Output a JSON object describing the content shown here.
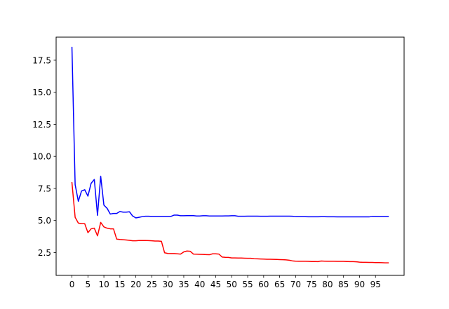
{
  "chart_data": {
    "type": "line",
    "title": "",
    "xlabel": "",
    "ylabel": "",
    "xlim": [
      -4.95,
      103.95
    ],
    "ylim": [
      0.72,
      19.3
    ],
    "grid": false,
    "legend": null,
    "x_ticks": [
      0,
      5,
      10,
      15,
      20,
      25,
      30,
      35,
      40,
      45,
      50,
      55,
      60,
      65,
      70,
      75,
      80,
      85,
      90,
      95
    ],
    "x_tick_labels": [
      "0",
      "5",
      "10",
      "15",
      "20",
      "25",
      "30",
      "35",
      "40",
      "45",
      "50",
      "55",
      "60",
      "65",
      "70",
      "75",
      "80",
      "85",
      "90",
      "95"
    ],
    "y_ticks": [
      2.5,
      5.0,
      7.5,
      10.0,
      12.5,
      15.0,
      17.5
    ],
    "y_tick_labels": [
      "2.5",
      "5.0",
      "7.5",
      "10.0",
      "12.5",
      "15.0",
      "17.5"
    ],
    "series": [
      {
        "color": "#0000ff",
        "values": [
          18.5,
          7.8,
          6.5,
          7.3,
          7.4,
          6.9,
          7.9,
          8.2,
          5.4,
          8.45,
          6.2,
          5.95,
          5.5,
          5.55,
          5.55,
          5.7,
          5.65,
          5.65,
          5.68,
          5.35,
          5.2,
          5.25,
          5.3,
          5.33,
          5.33,
          5.32,
          5.32,
          5.32,
          5.32,
          5.32,
          5.32,
          5.32,
          5.42,
          5.42,
          5.37,
          5.37,
          5.38,
          5.38,
          5.38,
          5.35,
          5.35,
          5.37,
          5.37,
          5.35,
          5.35,
          5.35,
          5.35,
          5.35,
          5.36,
          5.36,
          5.37,
          5.37,
          5.33,
          5.33,
          5.33,
          5.34,
          5.34,
          5.34,
          5.34,
          5.33,
          5.33,
          5.33,
          5.34,
          5.34,
          5.34,
          5.34,
          5.34,
          5.34,
          5.34,
          5.33,
          5.3,
          5.3,
          5.3,
          5.3,
          5.29,
          5.29,
          5.29,
          5.29,
          5.3,
          5.3,
          5.29,
          5.29,
          5.29,
          5.28,
          5.28,
          5.28,
          5.28,
          5.28,
          5.28,
          5.28,
          5.28,
          5.28,
          5.28,
          5.28,
          5.32,
          5.32,
          5.31,
          5.31,
          5.31,
          5.31
        ]
      },
      {
        "color": "#ff0000",
        "values": [
          7.95,
          5.25,
          4.8,
          4.75,
          4.75,
          4.05,
          4.35,
          4.4,
          3.8,
          4.85,
          4.5,
          4.4,
          4.35,
          4.35,
          3.55,
          3.52,
          3.5,
          3.48,
          3.45,
          3.42,
          3.42,
          3.44,
          3.44,
          3.44,
          3.43,
          3.42,
          3.4,
          3.4,
          3.38,
          2.48,
          2.43,
          2.42,
          2.42,
          2.4,
          2.38,
          2.55,
          2.62,
          2.6,
          2.38,
          2.37,
          2.36,
          2.35,
          2.34,
          2.33,
          2.4,
          2.4,
          2.38,
          2.15,
          2.13,
          2.12,
          2.08,
          2.08,
          2.07,
          2.07,
          2.06,
          2.05,
          2.05,
          2.02,
          2.01,
          2.0,
          1.99,
          1.98,
          1.98,
          1.97,
          1.96,
          1.95,
          1.94,
          1.93,
          1.9,
          1.85,
          1.83,
          1.82,
          1.82,
          1.82,
          1.81,
          1.8,
          1.8,
          1.79,
          1.84,
          1.83,
          1.82,
          1.82,
          1.82,
          1.81,
          1.81,
          1.81,
          1.8,
          1.79,
          1.79,
          1.78,
          1.75,
          1.74,
          1.74,
          1.73,
          1.73,
          1.72,
          1.72,
          1.71,
          1.7,
          1.7
        ]
      }
    ]
  }
}
